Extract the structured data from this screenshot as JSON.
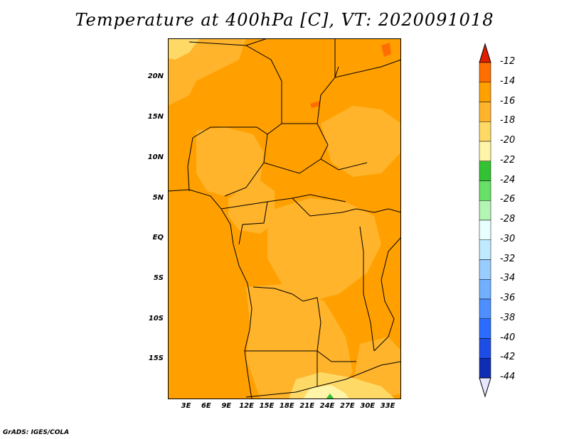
{
  "title": "Temperature at 400hPa [C], VT: 2020091018",
  "footer": "GrADS: IGES/COLA",
  "map": {
    "lat_ticks": [
      "20N",
      "15N",
      "10N",
      "5N",
      "EQ",
      "5S",
      "10S",
      "15S"
    ],
    "lat_values": [
      20,
      15,
      10,
      5,
      0,
      -5,
      -10,
      -15
    ],
    "lon_ticks": [
      "3E",
      "6E",
      "9E",
      "12E",
      "15E",
      "18E",
      "21E",
      "24E",
      "27E",
      "30E",
      "33E"
    ],
    "lon_values": [
      3,
      6,
      9,
      12,
      15,
      18,
      21,
      24,
      27,
      30,
      33
    ],
    "lat_range": [
      -20,
      24.8
    ],
    "lon_range": [
      0.3,
      35
    ]
  },
  "colorbar": {
    "labels": [
      "-12",
      "-14",
      "-16",
      "-18",
      "-20",
      "-22",
      "-24",
      "-26",
      "-28",
      "-30",
      "-32",
      "-34",
      "-36",
      "-38",
      "-40",
      "-42",
      "-44"
    ],
    "colors": [
      "#f0320f",
      "#ff6e00",
      "#ffa000",
      "#ffb42c",
      "#ffd966",
      "#fff5a8",
      "#33c233",
      "#66e066",
      "#b3f5b3",
      "#e8ffff",
      "#bfeaff",
      "#99ccff",
      "#70b0ff",
      "#4d8fff",
      "#2b6cff",
      "#1e4de6",
      "#0d2db3",
      "#0a0a6e"
    ],
    "end_colors": {
      "top": "#e01e00",
      "bottom": "#e6e6ff"
    }
  }
}
